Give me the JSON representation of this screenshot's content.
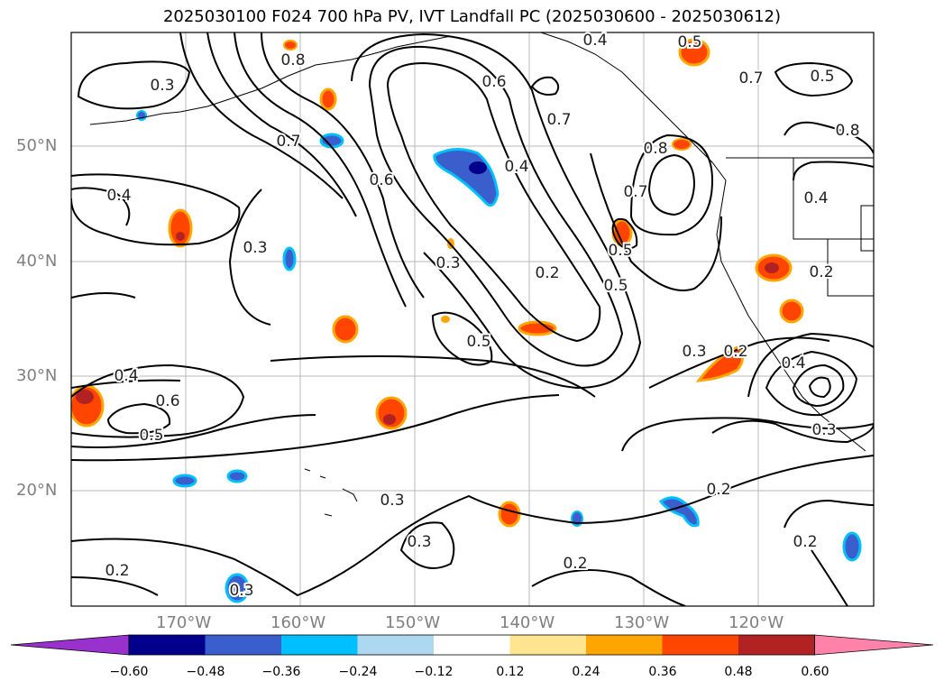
{
  "title": "2025030100 F024 700 hPa PV, IVT Landfall PC (2025030600 - 2025030612)",
  "map": {
    "lat_ticks": [
      "50°N",
      "40°N",
      "30°N",
      "20°N"
    ],
    "lon_ticks": [
      "170°W",
      "160°W",
      "150°W",
      "140°W",
      "130°W",
      "120°W"
    ],
    "contour_labels": [
      "0.4",
      "0.5",
      "0.3",
      "0.8",
      "0.6",
      "0.7",
      "0.7",
      "0.6",
      "0.4",
      "0.8",
      "0.7",
      "0.4",
      "0.4",
      "0.3",
      "0.3",
      "0.5",
      "0.2",
      "0.5",
      "0.2",
      "0.5",
      "0.3",
      "0.2",
      "0.4",
      "0.6",
      "0.5",
      "0.3",
      "0.2",
      "0.3",
      "0.2",
      "0.3",
      "0.2",
      "0.2",
      "0.3",
      "0.8",
      "0.7",
      "0.5",
      "0.4"
    ]
  },
  "colorbar": {
    "colors": [
      "#9932cc",
      "#00008b",
      "#3a5fcd",
      "#00bfff",
      "#add8f0",
      "#ffffff",
      "#ffe58f",
      "#ffa500",
      "#ff4500",
      "#b22222",
      "#ff82ab"
    ],
    "tick_labels": [
      "−0.60",
      "−0.48",
      "−0.36",
      "−0.24",
      "−0.12",
      "0.12",
      "0.24",
      "0.36",
      "0.48",
      "0.60"
    ]
  }
}
